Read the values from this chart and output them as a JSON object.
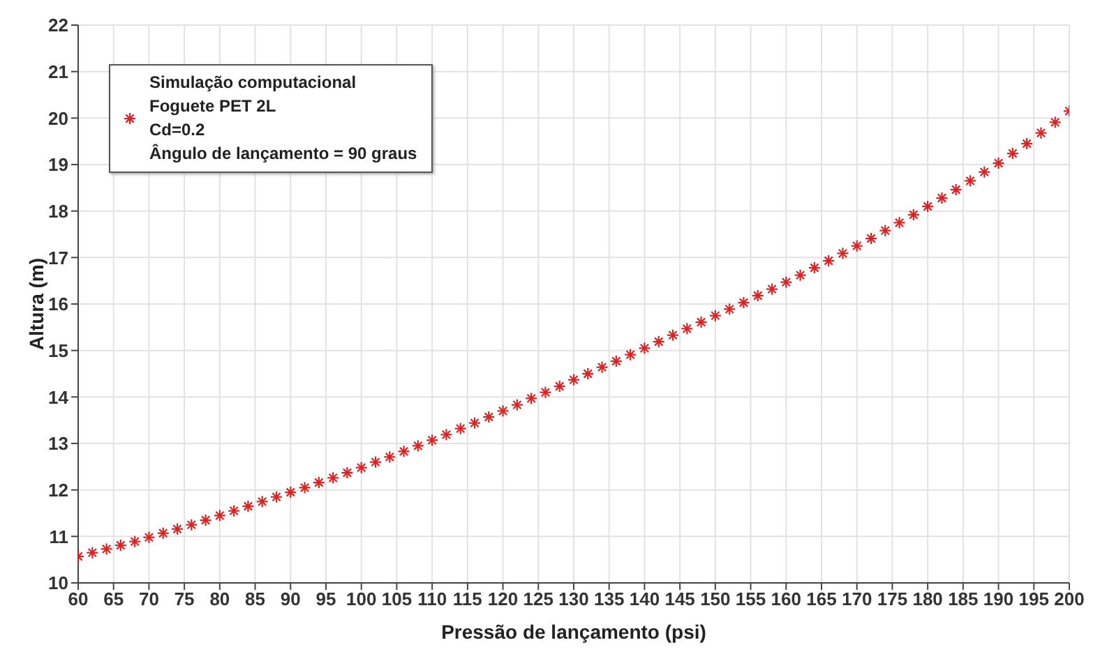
{
  "chart_data": {
    "type": "scatter",
    "xlabel": "Pressão de lançamento (psi)",
    "ylabel": "Altura (m)",
    "x": [
      60,
      62,
      64,
      66,
      68,
      70,
      72,
      74,
      76,
      78,
      80,
      82,
      84,
      86,
      88,
      90,
      92,
      94,
      96,
      98,
      100,
      102,
      104,
      106,
      108,
      110,
      112,
      114,
      116,
      118,
      120,
      122,
      124,
      126,
      128,
      130,
      132,
      134,
      136,
      138,
      140,
      142,
      144,
      146,
      148,
      150,
      152,
      154,
      156,
      158,
      160,
      162,
      164,
      166,
      168,
      170,
      172,
      174,
      176,
      178,
      180,
      182,
      184,
      186,
      188,
      190,
      192,
      194,
      196,
      198,
      200
    ],
    "series": [
      {
        "name": "Simulação computacional\nFoguete PET 2L\nCd=0.2\nÂngulo de lançamento = 90 graus",
        "color": "#e02020",
        "values": [
          10.57,
          10.65,
          10.73,
          10.81,
          10.89,
          10.98,
          11.07,
          11.16,
          11.25,
          11.35,
          11.45,
          11.55,
          11.65,
          11.75,
          11.85,
          11.95,
          12.05,
          12.16,
          12.26,
          12.37,
          12.48,
          12.6,
          12.71,
          12.83,
          12.95,
          13.07,
          13.19,
          13.32,
          13.44,
          13.57,
          13.7,
          13.83,
          13.97,
          14.1,
          14.23,
          14.37,
          14.5,
          14.64,
          14.77,
          14.91,
          15.05,
          15.19,
          15.33,
          15.47,
          15.61,
          15.75,
          15.89,
          16.03,
          16.18,
          16.32,
          16.47,
          16.62,
          16.78,
          16.93,
          17.09,
          17.25,
          17.41,
          17.58,
          17.75,
          17.92,
          18.1,
          18.28,
          18.46,
          18.65,
          18.84,
          19.03,
          19.24,
          19.45,
          19.68,
          19.91,
          20.15
        ]
      }
    ],
    "xlim": [
      60,
      200
    ],
    "xticks": [
      60,
      65,
      70,
      75,
      80,
      85,
      90,
      95,
      100,
      105,
      110,
      115,
      120,
      125,
      130,
      135,
      140,
      145,
      150,
      155,
      160,
      165,
      170,
      175,
      180,
      185,
      190,
      195,
      200
    ],
    "ylim": [
      10,
      22
    ],
    "yticks": [
      10,
      11,
      12,
      13,
      14,
      15,
      16,
      17,
      18,
      19,
      20,
      21,
      22
    ],
    "grid": true,
    "legend": "top left",
    "marker": "cross"
  }
}
